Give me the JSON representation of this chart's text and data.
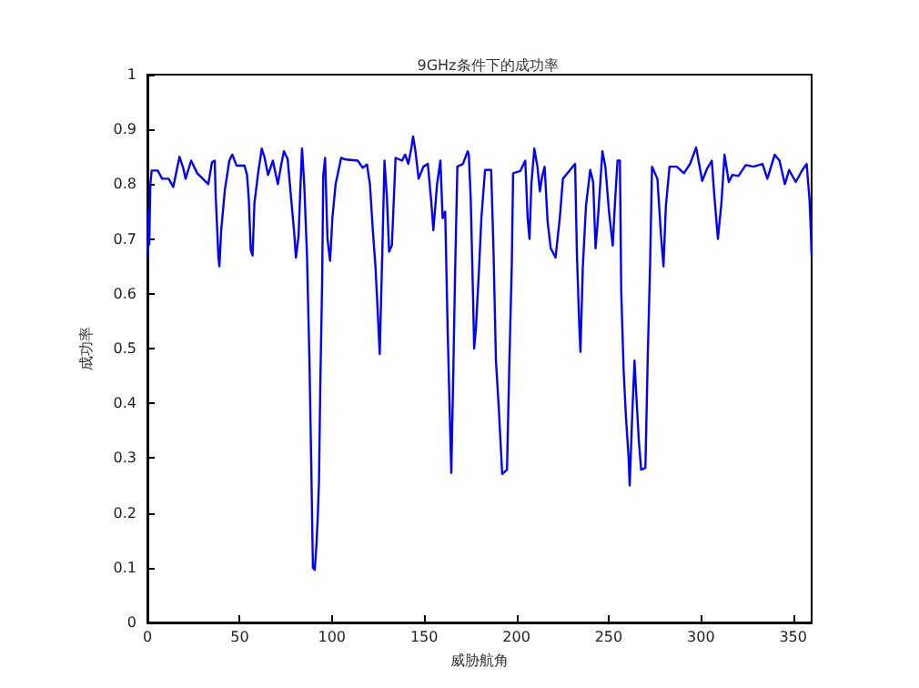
{
  "chart_data": {
    "type": "line",
    "title": "9GHz条件下的成功率",
    "xlabel": "威胁航角",
    "ylabel": "成功率",
    "xlim": [
      0,
      360
    ],
    "xticks": [
      0,
      50,
      100,
      150,
      200,
      250,
      300,
      350
    ],
    "ylim": [
      0,
      1
    ],
    "yticks": [
      0,
      0.1,
      0.2,
      0.3,
      0.4,
      0.5,
      0.6,
      0.7,
      0.8,
      0.9,
      1
    ],
    "grid": false,
    "marker": "none",
    "line_style": "solid",
    "series": [
      {
        "color": "#0000ff",
        "x": [
          0,
          0.7,
          1,
          1.6,
          2.3,
          5.6,
          8,
          11.5,
          14,
          17.4,
          19.4,
          20.7,
          23.7,
          27,
          33,
          35,
          36.5,
          37,
          37.8,
          38.5,
          39,
          40,
          42,
          44.4,
          46,
          48.3,
          52.6,
          54,
          55,
          56,
          57,
          58,
          60,
          62,
          63.4,
          65.4,
          68,
          70.7,
          72.6,
          74,
          76,
          78,
          79.6,
          80.5,
          81.9,
          83,
          83.8,
          85,
          86.5,
          87.8,
          88.8,
          89.7,
          90.7,
          91.7,
          92.4,
          93,
          93.7,
          94.7,
          95.3,
          96.3,
          97.6,
          99,
          100.3,
          102,
          105,
          107.5,
          114,
          116.7,
          119,
          120.6,
          122.3,
          123.6,
          124.6,
          125.2,
          125.9,
          127.2,
          128.5,
          129.8,
          131,
          132.5,
          134.5,
          138,
          139.7,
          141.4,
          143,
          144,
          145.3,
          147,
          149.6,
          152,
          153.8,
          155,
          157,
          158.8,
          160,
          161.4,
          162.7,
          163.7,
          164.7,
          165.7,
          166.7,
          168,
          171,
          173.6,
          174.2,
          175.2,
          176.5,
          177.1,
          178.1,
          179.8,
          181,
          183,
          186.3,
          187.6,
          188.9,
          190.3,
          192.3,
          194.9,
          196.2,
          197.5,
          198.2,
          202.1,
          204.8,
          206.1,
          207.1,
          208.1,
          209.7,
          211.4,
          212.7,
          214,
          215.3,
          216.9,
          218.6,
          221.2,
          223.5,
          225.2,
          229.1,
          231.8,
          232.8,
          234.1,
          234.7,
          236,
          237.7,
          240,
          241.6,
          242.9,
          244.2,
          246.6,
          248.2,
          250.2,
          252.2,
          253.5,
          254.8,
          256.1,
          256.8,
          258.1,
          259.4,
          260.7,
          261.4,
          262.7,
          264,
          264.6,
          266.3,
          267.6,
          269.9,
          271.2,
          272.5,
          273.5,
          276.4,
          278.4,
          279.7,
          281,
          283,
          286.9,
          290.8,
          294.1,
          297.4,
          300.7,
          303.3,
          305.9,
          307.2,
          309.2,
          311.1,
          312.8,
          315.1,
          317.1,
          320.3,
          324.3,
          328.5,
          333.4,
          336,
          340,
          342.6,
          345.5,
          347.8,
          351.4,
          355,
          357.3,
          358.9,
          359.6,
          360
        ],
        "values": [
          0.666,
          0.75,
          0.69,
          0.8,
          0.825,
          0.825,
          0.81,
          0.81,
          0.795,
          0.85,
          0.83,
          0.81,
          0.843,
          0.82,
          0.8,
          0.84,
          0.843,
          0.78,
          0.72,
          0.666,
          0.65,
          0.716,
          0.79,
          0.843,
          0.854,
          0.834,
          0.834,
          0.817,
          0.77,
          0.68,
          0.67,
          0.765,
          0.82,
          0.865,
          0.85,
          0.817,
          0.843,
          0.8,
          0.837,
          0.86,
          0.846,
          0.77,
          0.71,
          0.666,
          0.705,
          0.8,
          0.865,
          0.8,
          0.67,
          0.483,
          0.29,
          0.1,
          0.096,
          0.146,
          0.2,
          0.257,
          0.434,
          0.62,
          0.815,
          0.848,
          0.7,
          0.66,
          0.74,
          0.8,
          0.848,
          0.845,
          0.843,
          0.83,
          0.836,
          0.8,
          0.71,
          0.65,
          0.583,
          0.54,
          0.49,
          0.66,
          0.843,
          0.777,
          0.677,
          0.688,
          0.848,
          0.843,
          0.854,
          0.837,
          0.865,
          0.887,
          0.86,
          0.81,
          0.832,
          0.837,
          0.77,
          0.716,
          0.8,
          0.843,
          0.738,
          0.75,
          0.54,
          0.405,
          0.273,
          0.44,
          0.627,
          0.832,
          0.837,
          0.86,
          0.854,
          0.777,
          0.594,
          0.5,
          0.539,
          0.65,
          0.738,
          0.826,
          0.826,
          0.677,
          0.478,
          0.4,
          0.271,
          0.279,
          0.478,
          0.655,
          0.82,
          0.824,
          0.843,
          0.738,
          0.7,
          0.8,
          0.865,
          0.832,
          0.787,
          0.815,
          0.832,
          0.732,
          0.683,
          0.666,
          0.738,
          0.81,
          0.826,
          0.837,
          0.671,
          0.539,
          0.494,
          0.65,
          0.76,
          0.826,
          0.804,
          0.683,
          0.738,
          0.86,
          0.832,
          0.749,
          0.688,
          0.771,
          0.843,
          0.843,
          0.605,
          0.461,
          0.373,
          0.306,
          0.25,
          0.373,
          0.478,
          0.439,
          0.334,
          0.279,
          0.282,
          0.489,
          0.66,
          0.832,
          0.81,
          0.705,
          0.65,
          0.76,
          0.832,
          0.832,
          0.82,
          0.837,
          0.867,
          0.806,
          0.828,
          0.843,
          0.782,
          0.7,
          0.765,
          0.854,
          0.804,
          0.817,
          0.815,
          0.835,
          0.832,
          0.837,
          0.81,
          0.854,
          0.843,
          0.8,
          0.826,
          0.804,
          0.826,
          0.837,
          0.77,
          0.71,
          0.67
        ]
      }
    ]
  }
}
